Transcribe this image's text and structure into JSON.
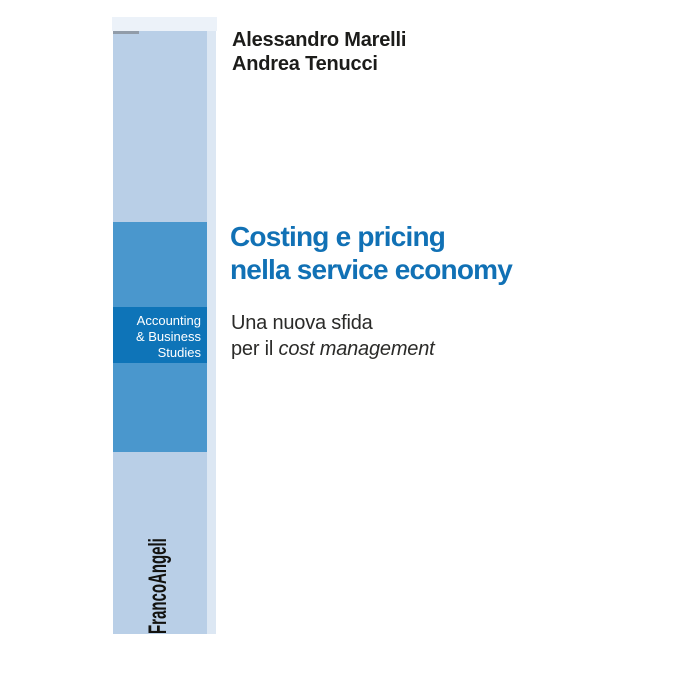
{
  "cover": {
    "authors": [
      "Alessandro Marelli",
      "Andrea Tenucci"
    ],
    "title": {
      "lines": [
        "Costing e pricing",
        "nella service economy"
      ]
    },
    "subtitle": {
      "line1": "Una nuova sfida",
      "line2_prefix": "per il",
      "line2_italic": "cost management"
    },
    "series": {
      "lines": [
        "Accounting",
        "& Business",
        "Studies"
      ]
    },
    "publisher": "FrancoAngeli",
    "colors": {
      "band_light_blue": "#b9cfe7",
      "band_edge_light": "#dce7f3",
      "top_strip": "#ecf2f9",
      "block_medium_blue": "#4a97cd",
      "block_dark_blue": "#0e74b8",
      "title_blue": "#1171b5",
      "text_dark": "#1c1c1a",
      "series_text": "#ffffff"
    }
  }
}
